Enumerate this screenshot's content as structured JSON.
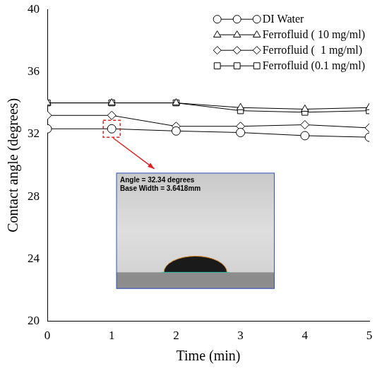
{
  "chart_data": {
    "type": "line",
    "x_label": "Time (min)",
    "y_label": "Contact angle (degrees)",
    "x": [
      0,
      1,
      2,
      3,
      4,
      5
    ],
    "series": [
      {
        "name": "DI Water",
        "color": "#000000",
        "marker": "circle",
        "line_style": "solid",
        "values": [
          32.34,
          32.34,
          32.2,
          32.1,
          31.9,
          31.8
        ]
      },
      {
        "name": "Ferrofluid ( 10 mg/ml)",
        "color": "#000000",
        "marker": "triangle",
        "line_style": "solid",
        "values": [
          34.0,
          34.0,
          34.0,
          33.7,
          33.6,
          33.7
        ]
      },
      {
        "name": "Ferrofluid (  1 mg/ml)",
        "color": "#000000",
        "marker": "diamond",
        "line_style": "solid",
        "values": [
          33.2,
          33.2,
          32.5,
          32.5,
          32.6,
          32.4
        ]
      },
      {
        "name": "Ferrofluid (0.1 mg/ml)",
        "color": "#000000",
        "marker": "square",
        "line_style": "solid",
        "values": [
          34.0,
          34.0,
          34.0,
          33.5,
          33.4,
          33.5
        ]
      }
    ],
    "xlim": [
      0,
      5
    ],
    "xticks": [
      0,
      1,
      2,
      3,
      4,
      5
    ],
    "ylim": [
      20,
      40
    ],
    "yticks": [
      20,
      24,
      28,
      32,
      36,
      40
    ],
    "grid": false,
    "legend": "top right",
    "annotations": [
      "Angle = 32.34 degrees",
      "Base Width = 3.6418mm"
    ]
  }
}
